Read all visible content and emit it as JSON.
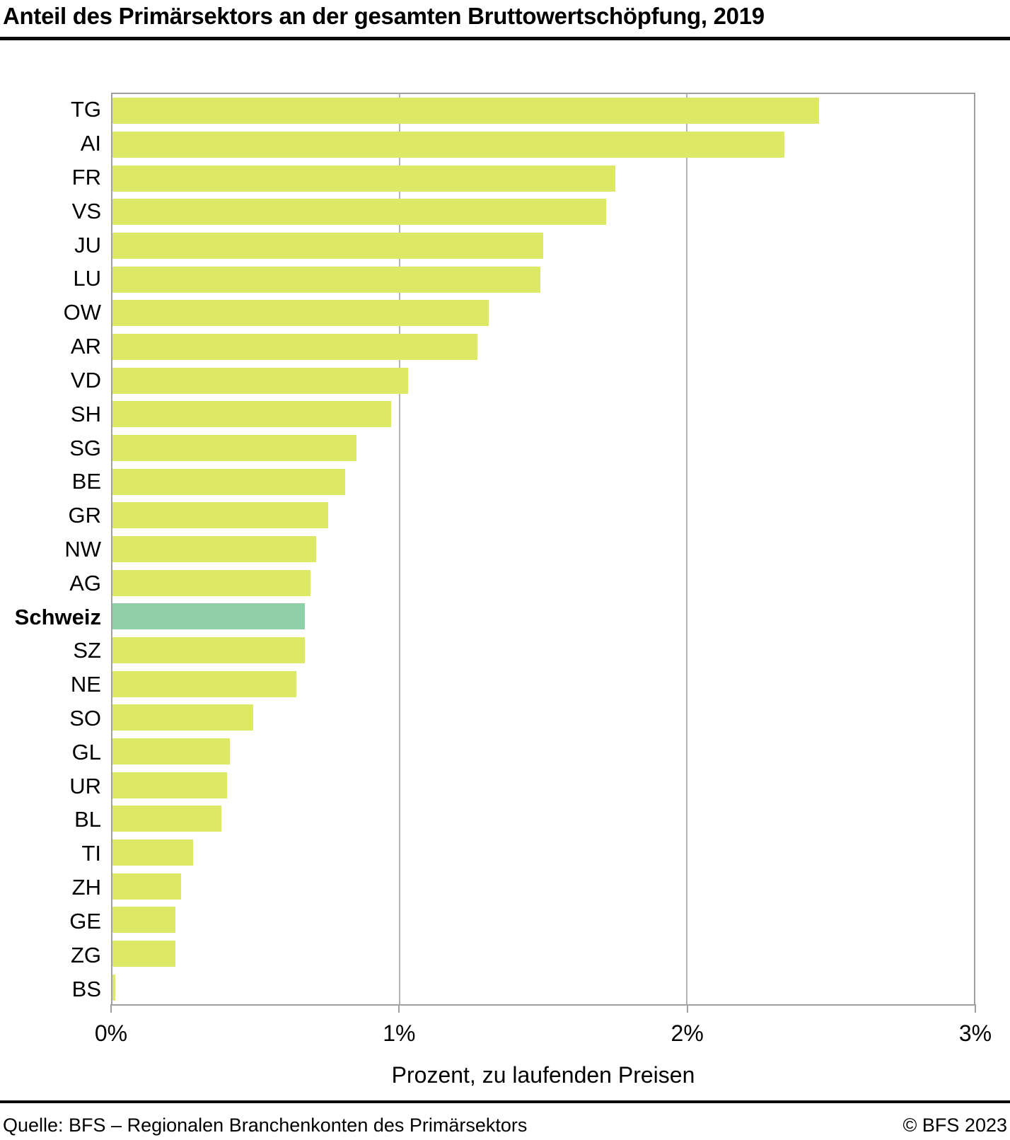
{
  "title": "Anteil des Primärsektors an der gesamten Bruttowertschöpfung, 2019",
  "chart_data": {
    "type": "bar",
    "orientation": "horizontal",
    "title": "Anteil des Primärsektors an der gesamten Bruttowertschöpfung, 2019",
    "categories": [
      "TG",
      "AI",
      "FR",
      "VS",
      "JU",
      "LU",
      "OW",
      "AR",
      "VD",
      "SH",
      "SG",
      "BE",
      "GR",
      "NW",
      "AG",
      "Schweiz",
      "SZ",
      "NE",
      "SO",
      "GL",
      "UR",
      "BL",
      "TI",
      "ZH",
      "GE",
      "ZG",
      "BS"
    ],
    "values": [
      2.46,
      2.34,
      1.75,
      1.72,
      1.5,
      1.49,
      1.31,
      1.27,
      1.03,
      0.97,
      0.85,
      0.81,
      0.75,
      0.71,
      0.69,
      0.67,
      0.67,
      0.64,
      0.49,
      0.41,
      0.4,
      0.38,
      0.28,
      0.24,
      0.22,
      0.22,
      0.01
    ],
    "highlight_category": "Schweiz",
    "xlabel": "Prozent, zu laufenden Preisen",
    "ylabel": "",
    "x_ticks": [
      "0%",
      "1%",
      "2%",
      "3%"
    ],
    "xlim": [
      0,
      3
    ],
    "grid": "vertical gridlines at 1% and 2%, behind bars",
    "legend": "none",
    "bar_color": "#dde867",
    "highlight_color": "#90d0a8",
    "axis_color": "#a0a0a0",
    "gridline_color": "#b4b4b4"
  },
  "footer": {
    "source": "Quelle: BFS – Regionalen Branchenkonten des Primärsektors",
    "copyright": "© BFS 2023"
  }
}
